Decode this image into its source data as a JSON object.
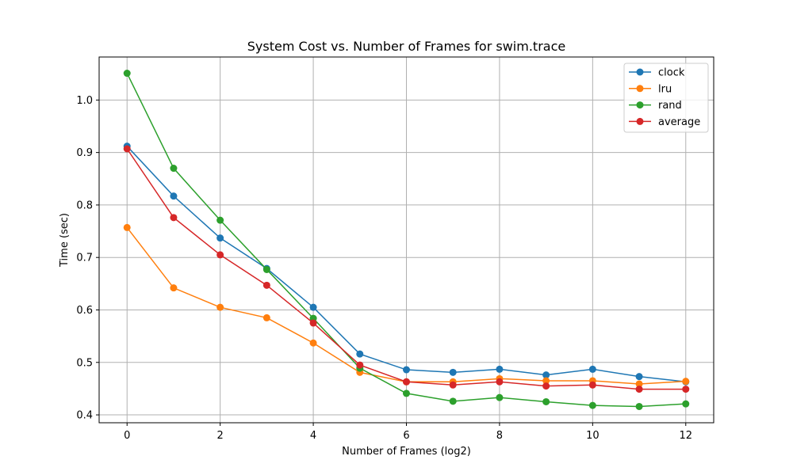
{
  "chart_data": {
    "type": "line",
    "title": "System Cost vs. Number of Frames for swim.trace",
    "xlabel": "Number of Frames (log2)",
    "ylabel": "Time (sec)",
    "x": [
      0,
      1,
      2,
      3,
      4,
      5,
      6,
      7,
      8,
      9,
      10,
      11,
      12
    ],
    "xlim": [
      -0.6,
      12.6
    ],
    "ylim": [
      0.385,
      1.082
    ],
    "xticks": [
      0,
      2,
      4,
      6,
      8,
      10,
      12
    ],
    "yticks": [
      0.4,
      0.5,
      0.6,
      0.7,
      0.8,
      0.9,
      1.0
    ],
    "xtick_labels": [
      "0",
      "2",
      "4",
      "6",
      "8",
      "10",
      "12"
    ],
    "ytick_labels": [
      "0.4",
      "0.5",
      "0.6",
      "0.7",
      "0.8",
      "0.9",
      "1.0"
    ],
    "grid": true,
    "legend_position": "top-right",
    "series": [
      {
        "name": "clock",
        "color": "#1f77b4",
        "values": [
          0.912,
          0.817,
          0.737,
          0.679,
          0.605,
          0.516,
          0.486,
          0.481,
          0.487,
          0.476,
          0.487,
          0.473,
          0.463
        ]
      },
      {
        "name": "lru",
        "color": "#ff7f0e",
        "values": [
          0.757,
          0.642,
          0.605,
          0.585,
          0.537,
          0.481,
          0.463,
          0.463,
          0.469,
          0.465,
          0.465,
          0.459,
          0.464
        ]
      },
      {
        "name": "rand",
        "color": "#2ca02c",
        "values": [
          1.051,
          0.87,
          0.771,
          0.677,
          0.584,
          0.489,
          0.441,
          0.426,
          0.433,
          0.425,
          0.418,
          0.416,
          0.421
        ]
      },
      {
        "name": "average",
        "color": "#d62728",
        "values": [
          0.907,
          0.776,
          0.705,
          0.647,
          0.575,
          0.495,
          0.463,
          0.457,
          0.463,
          0.455,
          0.457,
          0.449,
          0.449
        ]
      }
    ]
  }
}
